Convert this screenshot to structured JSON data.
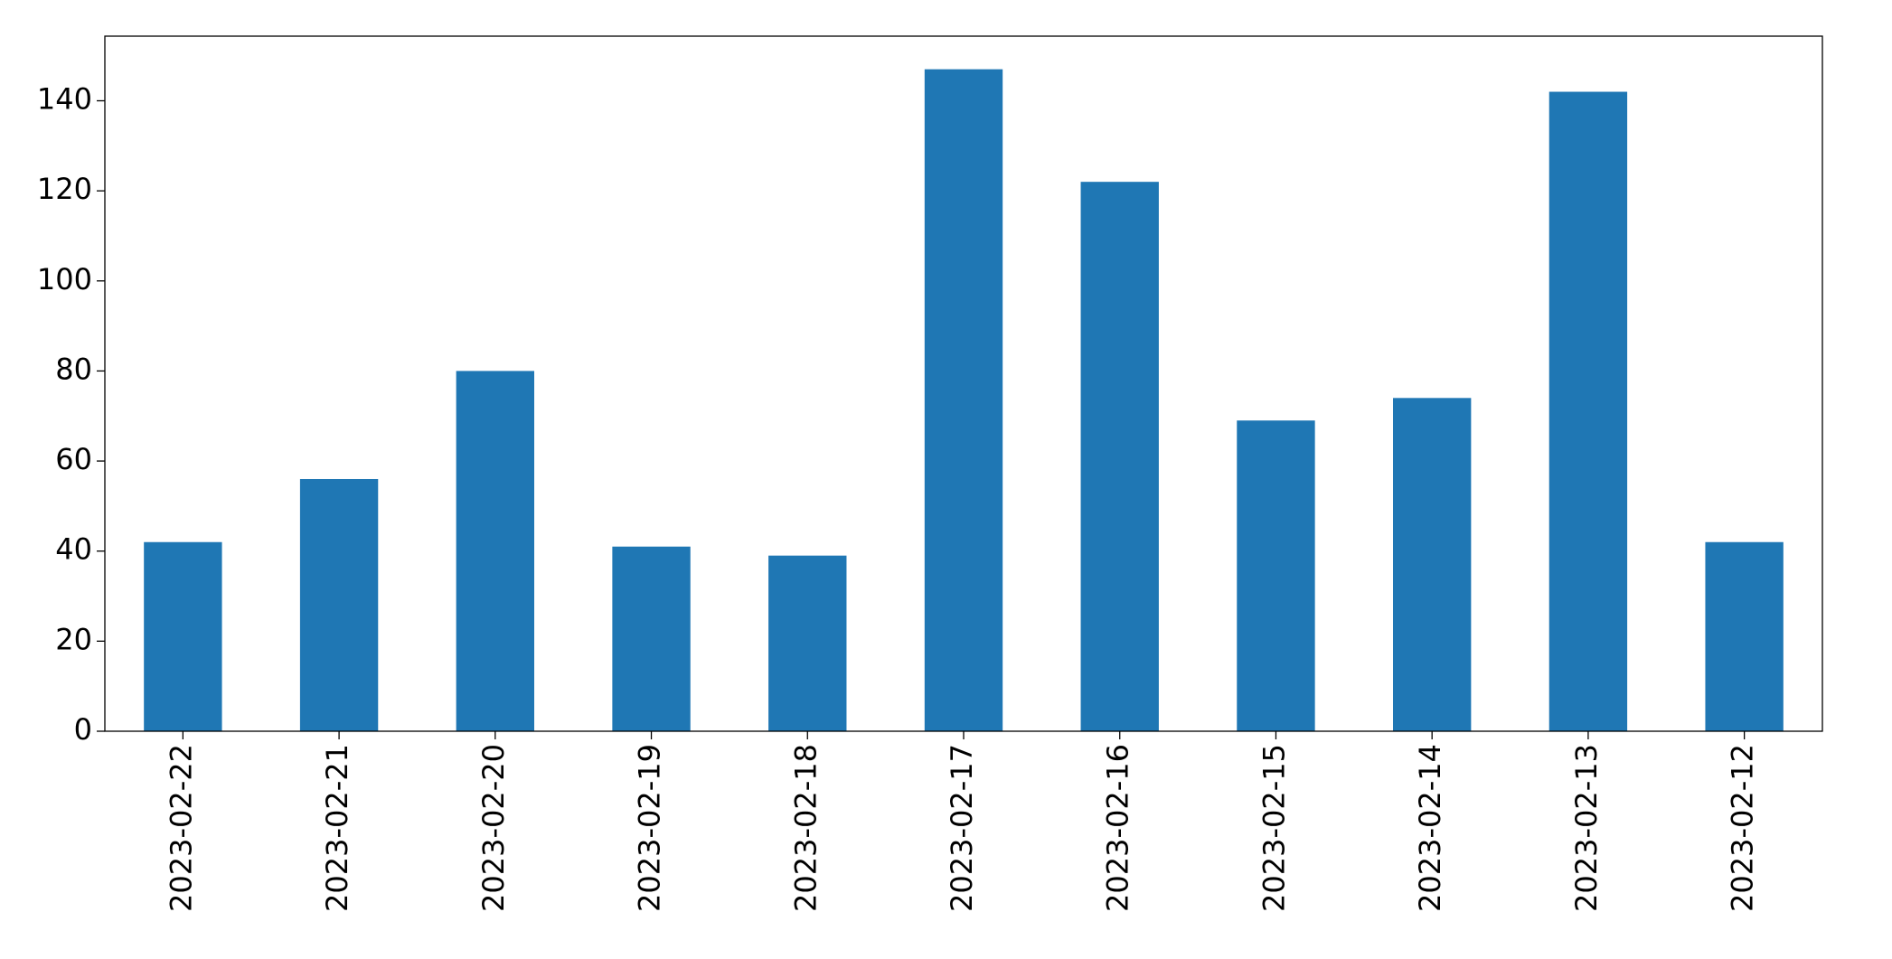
{
  "chart_data": {
    "type": "bar",
    "categories": [
      "2023-02-22",
      "2023-02-21",
      "2023-02-20",
      "2023-02-19",
      "2023-02-18",
      "2023-02-17",
      "2023-02-16",
      "2023-02-15",
      "2023-02-14",
      "2023-02-13",
      "2023-02-12"
    ],
    "values": [
      42,
      56,
      80,
      41,
      39,
      147,
      122,
      69,
      74,
      142,
      42
    ],
    "color": "#1f77b4",
    "ylim": [
      0,
      154.35
    ],
    "yticks": [
      0,
      20,
      40,
      60,
      80,
      100,
      120,
      140
    ],
    "grid": false
  }
}
